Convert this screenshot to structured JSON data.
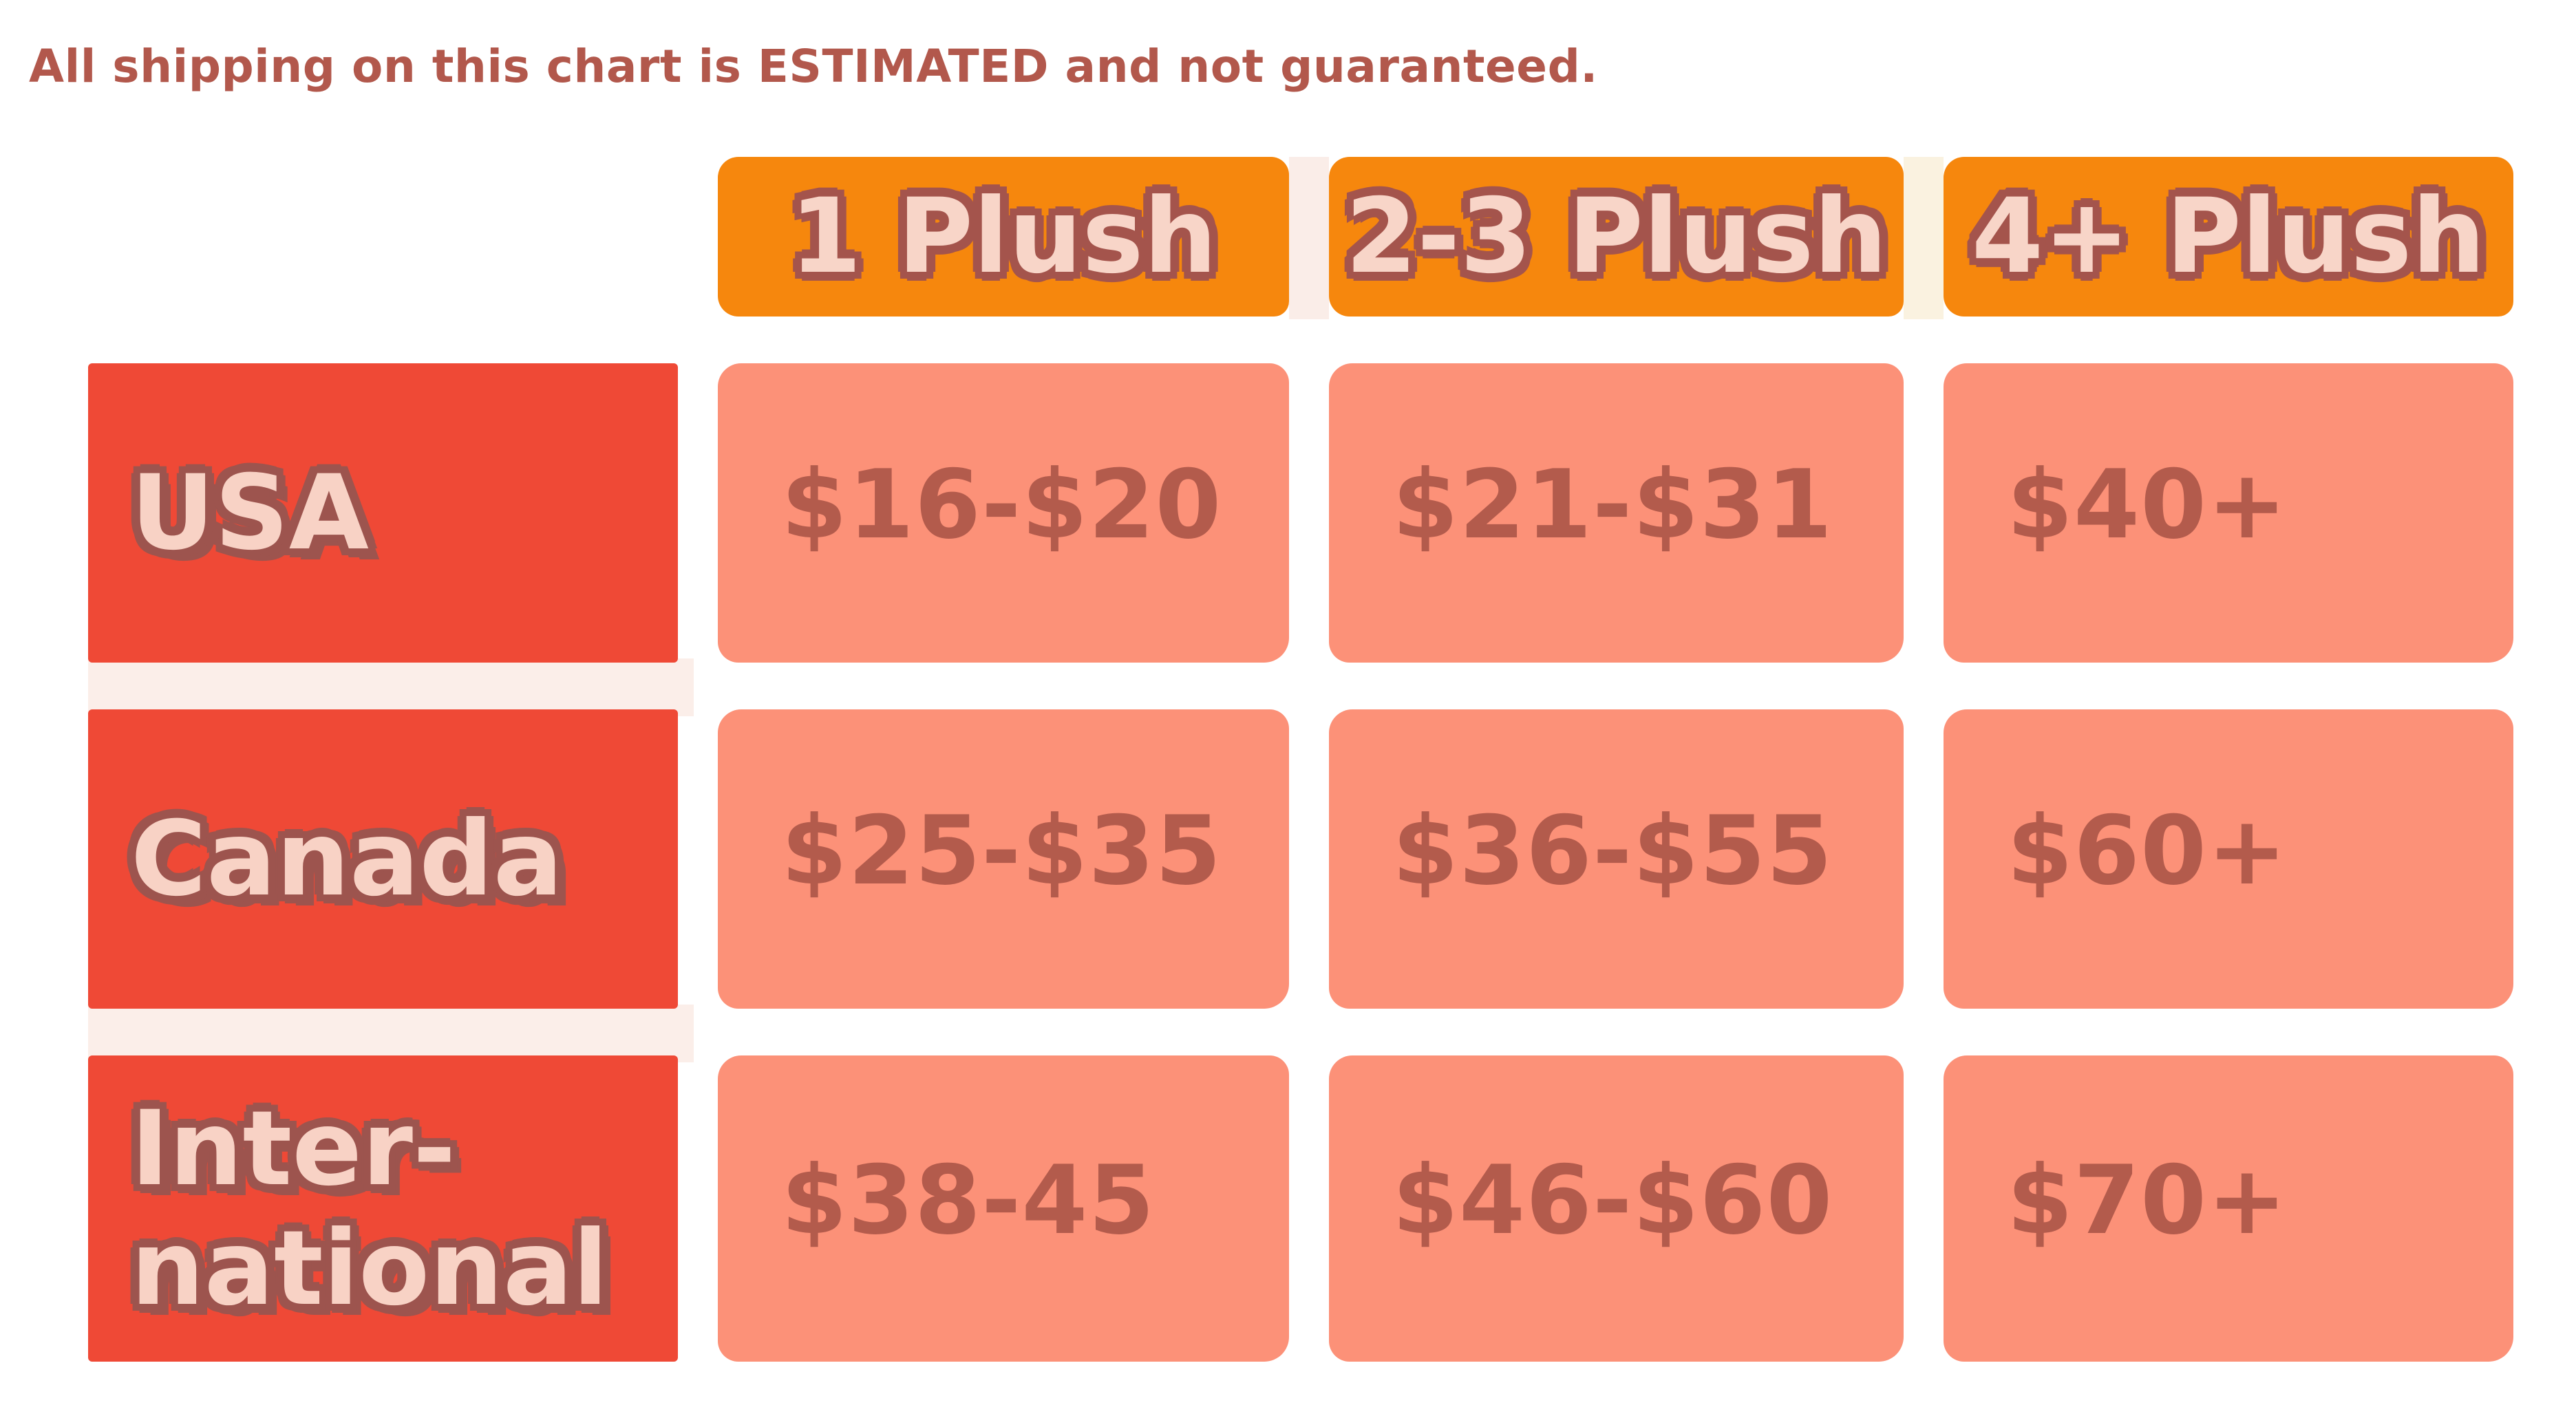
{
  "title": "All shipping on this chart is ESTIMATED and not guaranteed.",
  "chart_data": {
    "type": "table",
    "title": "All shipping on this chart is ESTIMATED and not guaranteed.",
    "columns": [
      "1 Plush",
      "2-3 Plush",
      "4+ Plush"
    ],
    "rows": [
      {
        "label": "USA",
        "values": [
          "$16-$20",
          "$21-$31",
          "$40+"
        ]
      },
      {
        "label": "Canada",
        "values": [
          "$25-$35",
          "$36-$55",
          "$60+"
        ]
      },
      {
        "label": "Inter-\nnational",
        "values": [
          "$38-45",
          "$46-$60",
          "$70+"
        ]
      }
    ]
  },
  "colors": {
    "page_bg": "#FFFFFF",
    "header_bg": "#F6870D",
    "row_header_bg": "#EF4936",
    "cell_bg": "#FC9178",
    "cell_text": "#B35B4C",
    "title_text": "#B2584C",
    "bubble_text_fill": "#F8D5C8",
    "bubble_text_outline": "#A4544C",
    "gap_strip_pink": "#FBEEE9",
    "gap_strip_cream": "#FAF2E0"
  }
}
